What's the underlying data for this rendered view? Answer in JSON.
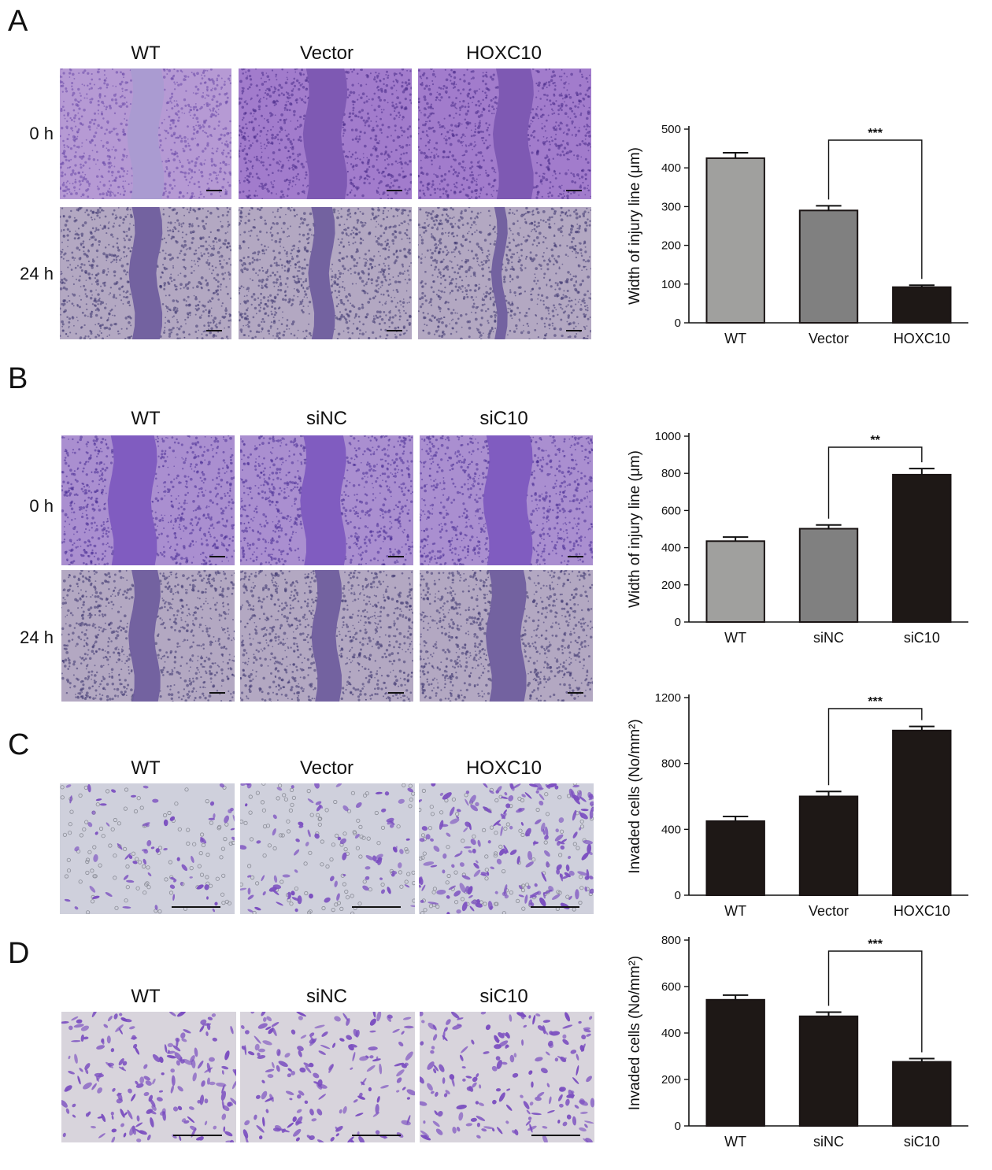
{
  "panels": [
    {
      "label": "A",
      "columns": [
        "WT",
        "Vector",
        "HOXC10"
      ],
      "rows": [
        "0 h",
        "24 h"
      ]
    },
    {
      "label": "B",
      "columns": [
        "WT",
        "siNC",
        "siC10"
      ],
      "rows": [
        "0 h",
        "24 h"
      ]
    },
    {
      "label": "C",
      "columns": [
        "WT",
        "Vector",
        "HOXC10"
      ],
      "rows": []
    },
    {
      "label": "D",
      "columns": [
        "WT",
        "siNC",
        "siC10"
      ],
      "rows": []
    }
  ],
  "colors": {
    "wt_gray": "#a0a09e",
    "vector_gray": "#808080",
    "dark": "#1e1816",
    "stain": "#8c64be"
  },
  "chart_data": [
    {
      "type": "bar",
      "panel": "A",
      "categories": [
        "WT",
        "Vector",
        "HOXC10"
      ],
      "values": [
        425,
        290,
        92
      ],
      "errors": [
        14,
        12,
        5
      ],
      "bar_colors": [
        "#a0a09e",
        "#808080",
        "#1e1816"
      ],
      "ylabel": "Width of injury line (μm)",
      "ylim": [
        0,
        500
      ],
      "yticks": [
        0,
        100,
        200,
        300,
        400,
        500
      ],
      "significance": {
        "from": 1,
        "to": 2,
        "label": "***"
      }
    },
    {
      "type": "bar",
      "panel": "B",
      "categories": [
        "WT",
        "siNC",
        "siC10"
      ],
      "values": [
        435,
        502,
        793
      ],
      "errors": [
        22,
        20,
        33
      ],
      "bar_colors": [
        "#a0a09e",
        "#808080",
        "#1e1816"
      ],
      "ylabel": "Width of injury line (μm)",
      "ylim": [
        0,
        1000
      ],
      "yticks": [
        0,
        200,
        400,
        600,
        800,
        1000
      ],
      "significance": {
        "from": 1,
        "to": 2,
        "label": "**"
      }
    },
    {
      "type": "bar",
      "panel": "C",
      "categories": [
        "WT",
        "Vector",
        "HOXC10"
      ],
      "values": [
        450,
        600,
        1000
      ],
      "errors": [
        28,
        30,
        25
      ],
      "bar_colors": [
        "#1e1816",
        "#1e1816",
        "#1e1816"
      ],
      "ylabel": "Invaded cells (No/mm²)",
      "ylim": [
        0,
        1200
      ],
      "yticks": [
        0,
        400,
        800,
        1200
      ],
      "significance": {
        "from": 1,
        "to": 2,
        "label": "***"
      }
    },
    {
      "type": "bar",
      "panel": "D",
      "categories": [
        "WT",
        "siNC",
        "siC10"
      ],
      "values": [
        543,
        472,
        276
      ],
      "errors": [
        20,
        18,
        14
      ],
      "bar_colors": [
        "#1e1816",
        "#1e1816",
        "#1e1816"
      ],
      "ylabel": "Invaded cells (No/mm²)",
      "ylim": [
        0,
        800
      ],
      "yticks": [
        0,
        200,
        400,
        600,
        800
      ],
      "significance": {
        "from": 1,
        "to": 2,
        "label": "***"
      }
    }
  ]
}
